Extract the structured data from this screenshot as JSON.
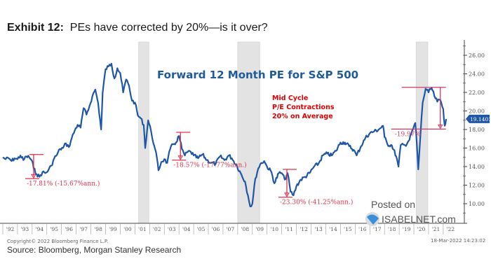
{
  "header": {
    "exhibit": "Exhibit 12:",
    "title": "PEs have corrected by 20%—is it over?"
  },
  "footer": {
    "copyright": "Copyright© 2022 Bloomberg Finance L.P.",
    "source": "Source: Bloomberg, Morgan Stanley Research",
    "timestamp": "18-Mar-2022 14:23:02"
  },
  "watermark": {
    "line1": "Posted on",
    "line2": "ISABELNET.com"
  },
  "colors": {
    "series": "#1f56a8",
    "annotation": "#e0304a",
    "callout_text": "#e00000",
    "chart_title": "#1f5a9a",
    "recession": "#e3e3e3",
    "last_value_bg": "#1f56a8"
  },
  "chart_data": {
    "type": "line",
    "title": "Forward 12 Month PE for S&P 500",
    "subtitle_annotation": [
      "Mid Cycle",
      "P/E Contractions",
      "20% on Average"
    ],
    "xlabel": "",
    "ylabel": "",
    "x_range": [
      1992.0,
      2022.3
    ],
    "ylim": [
      8.0,
      27.4
    ],
    "y_ticks": [
      "10.00",
      "12.00",
      "14.00",
      "16.00",
      "18.00",
      "20.00",
      "22.00",
      "24.00",
      "26.00"
    ],
    "y_tick_values": [
      10,
      12,
      14,
      16,
      18,
      20,
      22,
      24,
      26
    ],
    "x_ticks": [
      "'92",
      "'93",
      "'94",
      "'95",
      "'96",
      "'97",
      "'98",
      "'99",
      "'00",
      "'01",
      "'02",
      "'03",
      "'04",
      "'05",
      "'06",
      "'07",
      "'08",
      "'09",
      "'10",
      "'11",
      "'12",
      "'13",
      "'14",
      "'15",
      "'16",
      "'17",
      "'18",
      "'19",
      "'20",
      "'21",
      "'22"
    ],
    "y_axis_position": "right",
    "grid": false,
    "last_value_label": "19.1401",
    "recession_periods": [
      [
        2001.25,
        2001.95
      ],
      [
        2008.0,
        2009.5
      ],
      [
        2020.15,
        2020.95
      ]
    ],
    "series": [
      {
        "name": "Forward 12 Month PE for S&P 500",
        "x": [
          1992.0,
          1992.2,
          1992.4,
          1992.6,
          1992.8,
          1993.0,
          1993.2,
          1993.4,
          1993.6,
          1993.8,
          1994.0,
          1994.1,
          1994.3,
          1994.5,
          1994.7,
          1994.9,
          1995.1,
          1995.3,
          1995.5,
          1995.7,
          1995.9,
          1996.1,
          1996.3,
          1996.5,
          1996.7,
          1996.9,
          1997.1,
          1997.3,
          1997.5,
          1997.7,
          1997.9,
          1998.1,
          1998.3,
          1998.5,
          1998.7,
          1998.8,
          1999.0,
          1999.2,
          1999.4,
          1999.6,
          1999.8,
          2000.0,
          2000.2,
          2000.4,
          2000.6,
          2000.8,
          2001.0,
          2001.2,
          2001.4,
          2001.6,
          2001.7,
          2001.9,
          2002.1,
          2002.3,
          2002.5,
          2002.6,
          2002.8,
          2003.0,
          2003.2,
          2003.4,
          2003.6,
          2003.8,
          2004.0,
          2004.2,
          2004.4,
          2004.6,
          2004.8,
          2005.0,
          2005.3,
          2005.6,
          2005.9,
          2006.2,
          2006.5,
          2006.8,
          2007.1,
          2007.4,
          2007.6,
          2007.9,
          2008.2,
          2008.5,
          2008.7,
          2008.85,
          2009.0,
          2009.2,
          2009.4,
          2009.6,
          2009.8,
          2010.0,
          2010.3,
          2010.5,
          2010.8,
          2011.0,
          2011.2,
          2011.4,
          2011.6,
          2011.8,
          2012.0,
          2012.3,
          2012.6,
          2012.9,
          2013.2,
          2013.5,
          2013.8,
          2014.1,
          2014.4,
          2014.7,
          2015.0,
          2015.3,
          2015.6,
          2015.9,
          2016.1,
          2016.4,
          2016.7,
          2017.0,
          2017.3,
          2017.6,
          2017.9,
          2018.0,
          2018.2,
          2018.5,
          2018.8,
          2018.95,
          2019.1,
          2019.4,
          2019.7,
          2020.0,
          2020.1,
          2020.2,
          2020.3,
          2020.45,
          2020.6,
          2020.8,
          2021.0,
          2021.2,
          2021.4,
          2021.6,
          2021.8,
          2022.0,
          2022.1,
          2022.2
        ],
        "values": [
          15.0,
          14.8,
          14.9,
          14.6,
          14.9,
          14.8,
          15.2,
          14.7,
          15.1,
          15.0,
          14.6,
          13.8,
          13.2,
          12.9,
          13.4,
          13.3,
          13.6,
          14.1,
          14.9,
          15.3,
          15.9,
          16.0,
          16.5,
          16.1,
          17.1,
          17.9,
          18.5,
          18.2,
          20.3,
          19.6,
          20.5,
          21.6,
          22.3,
          20.8,
          18.0,
          21.9,
          24.5,
          24.8,
          25.1,
          23.5,
          24.6,
          24.1,
          22.0,
          23.4,
          22.7,
          21.1,
          20.9,
          19.5,
          19.2,
          18.5,
          16.0,
          19.0,
          17.8,
          16.3,
          14.9,
          13.6,
          14.5,
          14.8,
          14.4,
          15.9,
          16.4,
          16.6,
          17.3,
          15.9,
          15.2,
          15.6,
          15.6,
          15.2,
          14.9,
          15.3,
          14.7,
          14.4,
          14.3,
          15.1,
          14.7,
          15.2,
          14.9,
          14.2,
          13.3,
          12.4,
          10.9,
          9.7,
          10.0,
          12.7,
          13.8,
          14.4,
          14.6,
          14.0,
          13.4,
          12.2,
          13.3,
          13.3,
          12.6,
          13.3,
          11.3,
          10.9,
          11.9,
          12.6,
          12.9,
          13.3,
          14.0,
          14.3,
          15.2,
          15.4,
          15.2,
          15.7,
          16.6,
          16.6,
          16.2,
          15.8,
          15.2,
          16.2,
          17.1,
          17.6,
          17.8,
          18.0,
          18.4,
          17.2,
          16.4,
          16.3,
          15.1,
          14.0,
          16.3,
          16.3,
          16.9,
          18.3,
          18.7,
          16.5,
          13.7,
          17.5,
          20.9,
          22.4,
          22.0,
          22.5,
          21.6,
          21.0,
          21.2,
          20.2,
          18.4,
          19.14
        ]
      }
    ],
    "annotations": [
      {
        "label": "-17.81% (-15.67%ann.)",
        "from_value": 15.3,
        "to_value": 12.7,
        "x": 1994.1
      },
      {
        "label": "-18.57% (-17.77%ann.)",
        "from_value": 17.7,
        "to_value": 14.7,
        "x": 2004.1
      },
      {
        "label": "-23.30% (-41.25%ann.)",
        "from_value": 13.7,
        "to_value": 10.7,
        "x": 2011.35
      },
      {
        "label": "-19.97%",
        "from_value": 22.55,
        "to_value": 18.05,
        "x": 2021.8
      }
    ]
  }
}
